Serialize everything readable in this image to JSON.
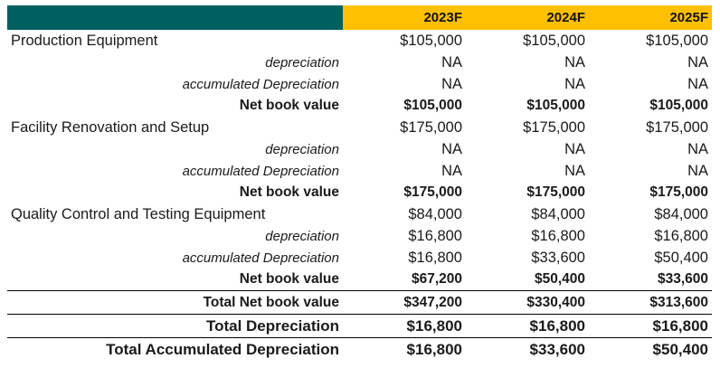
{
  "header": {
    "col1": "2023F",
    "col2": "2024F",
    "col3": "2025F",
    "band_color": "#006060",
    "year_color": "#ffc000"
  },
  "assets": [
    {
      "name": "Production Equipment",
      "cost": [
        "$105,000",
        "$105,000",
        "$105,000"
      ],
      "depreciation_label": "depreciation",
      "depreciation": [
        "NA",
        "NA",
        "NA"
      ],
      "accumulated_label": "accumulated Depreciation",
      "accumulated": [
        "NA",
        "NA",
        "NA"
      ],
      "nbv_label": "Net book value",
      "nbv": [
        "$105,000",
        "$105,000",
        "$105,000"
      ]
    },
    {
      "name": "Facility Renovation and Setup",
      "cost": [
        "$175,000",
        "$175,000",
        "$175,000"
      ],
      "depreciation_label": "depreciation",
      "depreciation": [
        "NA",
        "NA",
        "NA"
      ],
      "accumulated_label": "accumulated Depreciation",
      "accumulated": [
        "NA",
        "NA",
        "NA"
      ],
      "nbv_label": "Net book value",
      "nbv": [
        "$175,000",
        "$175,000",
        "$175,000"
      ]
    },
    {
      "name": "Quality Control and Testing Equipment",
      "cost": [
        "$84,000",
        "$84,000",
        "$84,000"
      ],
      "depreciation_label": "depreciation",
      "depreciation": [
        "$16,800",
        "$16,800",
        "$16,800"
      ],
      "accumulated_label": "accumulated Depreciation",
      "accumulated": [
        "$16,800",
        "$33,600",
        "$50,400"
      ],
      "nbv_label": "Net book value",
      "nbv": [
        "$67,200",
        "$50,400",
        "$33,600"
      ]
    }
  ],
  "totals": {
    "nbv_label": "Total Net book value",
    "nbv": [
      "$347,200",
      "$330,400",
      "$313,600"
    ],
    "dep_label": "Total Depreciation",
    "dep": [
      "$16,800",
      "$16,800",
      "$16,800"
    ],
    "acc_label": "Total Accumulated Depreciation",
    "acc": [
      "$16,800",
      "$33,600",
      "$50,400"
    ]
  }
}
